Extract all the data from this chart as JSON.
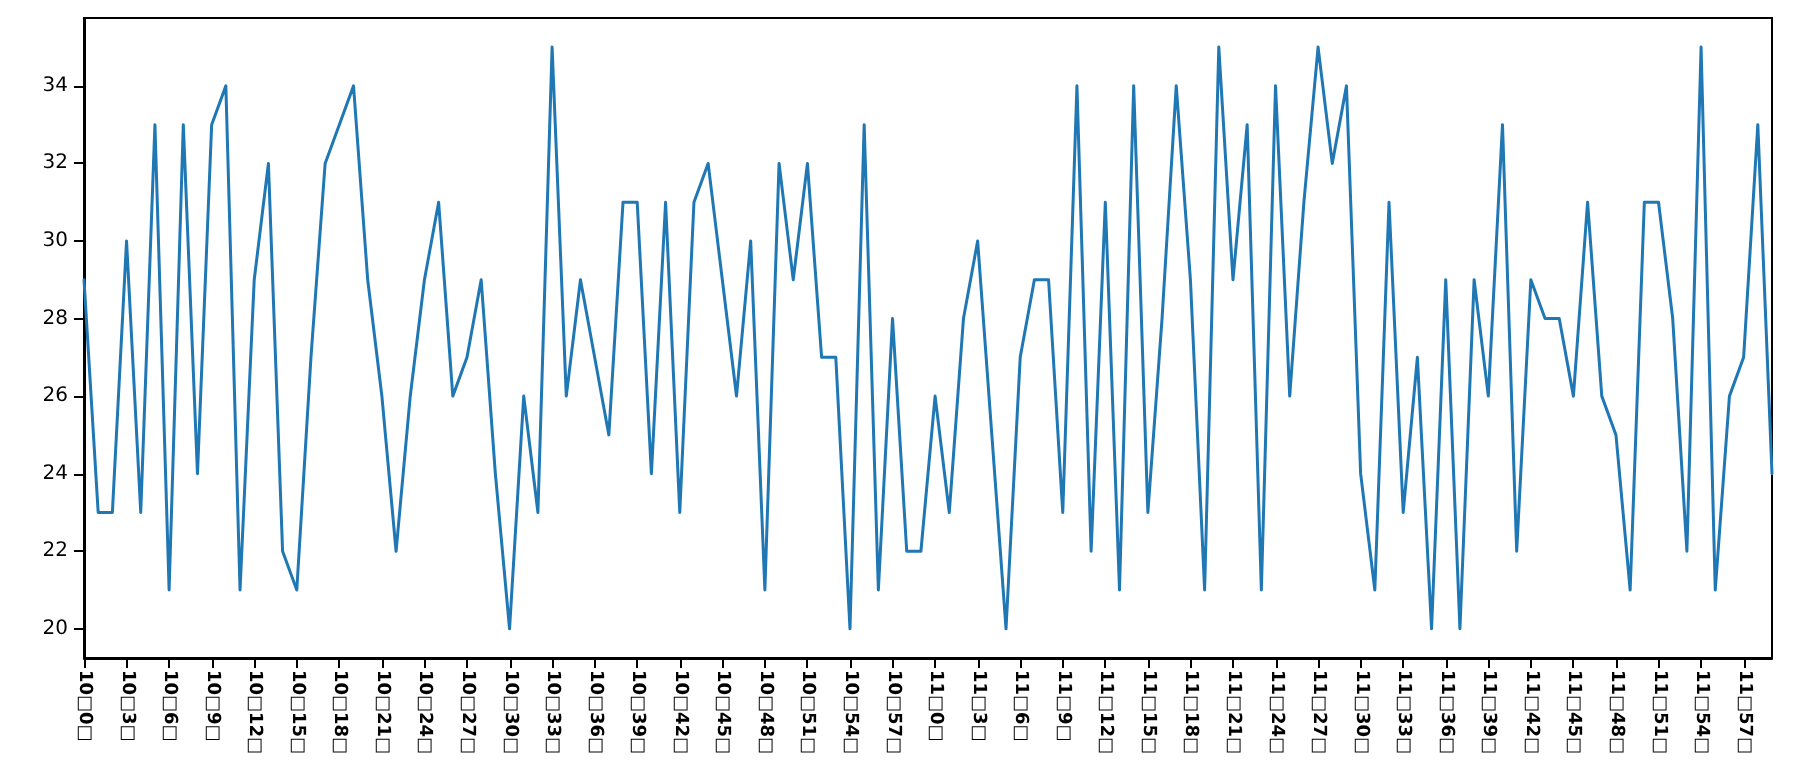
{
  "chart_data": {
    "type": "line",
    "categories": [
      "10□0□",
      null,
      null,
      "10□3□",
      null,
      null,
      "10□6□",
      null,
      null,
      "10□9□",
      null,
      null,
      "10□12□",
      null,
      null,
      "10□15□",
      null,
      null,
      "10□18□",
      null,
      null,
      "10□21□",
      null,
      null,
      "10□24□",
      null,
      null,
      "10□27□",
      null,
      null,
      "10□30□",
      null,
      null,
      "10□33□",
      null,
      null,
      "10□36□",
      null,
      null,
      "10□39□",
      null,
      null,
      "10□42□",
      null,
      null,
      "10□45□",
      null,
      null,
      "10□48□",
      null,
      null,
      "10□51□",
      null,
      null,
      "10□54□",
      null,
      null,
      "10□57□",
      null,
      null,
      "11□0□",
      null,
      null,
      "11□3□",
      null,
      null,
      "11□6□",
      null,
      null,
      "11□9□",
      null,
      null,
      "11□12□",
      null,
      null,
      "11□15□",
      null,
      null,
      "11□18□",
      null,
      null,
      "11□21□",
      null,
      null,
      "11□24□",
      null,
      null,
      "11□27□",
      null,
      null,
      "11□30□",
      null,
      null,
      "11□33□",
      null,
      null,
      "11□36□",
      null,
      null,
      "11□39□",
      null,
      null,
      "11□42□",
      null,
      null,
      "11□45□",
      null,
      null,
      "11□48□",
      null,
      null,
      "11□51□",
      null,
      null,
      "11□54□",
      null,
      null,
      "11□57□",
      null,
      null
    ],
    "series": [
      {
        "color": "#1f77b4",
        "values": [
          29,
          23,
          23,
          30,
          23,
          33,
          21,
          33,
          24,
          33,
          34,
          21,
          29,
          32,
          22,
          21,
          27,
          32,
          33,
          34,
          29,
          26,
          22,
          26,
          29,
          31,
          26,
          27,
          29,
          24,
          20,
          26,
          23,
          35,
          26,
          29,
          27,
          25,
          31,
          31,
          24,
          31,
          23,
          31,
          32,
          29,
          26,
          30,
          21,
          32,
          29,
          32,
          27,
          27,
          20,
          33,
          21,
          28,
          22,
          22,
          26,
          23,
          28,
          30,
          25,
          20,
          27,
          29,
          29,
          23,
          34,
          22,
          31,
          21,
          34,
          23,
          28,
          34,
          29,
          21,
          35,
          29,
          33,
          21,
          34,
          26,
          31,
          35,
          32,
          34,
          24,
          21,
          31,
          23,
          27,
          20,
          29,
          20,
          29,
          26,
          33,
          22,
          29,
          28,
          28,
          26,
          31,
          26,
          25,
          21,
          31,
          31,
          28,
          22,
          35,
          21,
          26,
          27,
          33,
          24
        ]
      }
    ],
    "ylim": [
      19.25,
      35.75
    ],
    "yticks": [
      20,
      22,
      24,
      26,
      28,
      30,
      32,
      34
    ],
    "grid": false,
    "marker": "none",
    "line_style": "solid"
  }
}
